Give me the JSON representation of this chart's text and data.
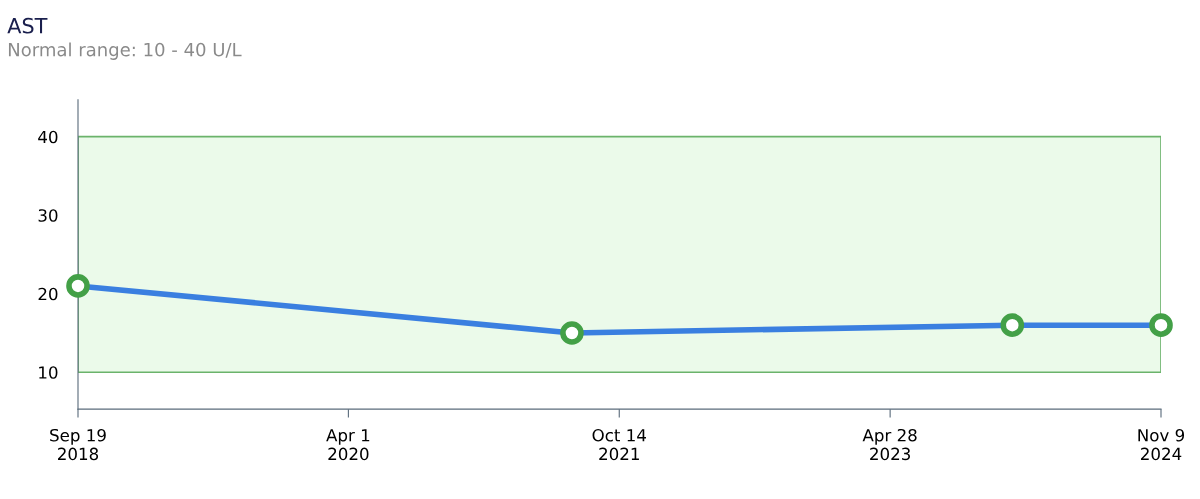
{
  "chart_data": {
    "type": "line",
    "title": "AST",
    "subtitle": "Normal range: 10 - 40 U/L",
    "x": [
      "2018-09-19",
      "2021-07-08",
      "2024-01-06",
      "2024-11-09"
    ],
    "series": [
      {
        "color": "#3a7fe0",
        "values": [
          21,
          15,
          16,
          16
        ]
      }
    ],
    "marker": "circle",
    "line_style": "solid",
    "grid": false,
    "xlim": [
      "2018-09-19",
      "2024-11-09"
    ],
    "xticks": [
      {
        "value": "2018-09-19",
        "label": "Sep 19\n2018"
      },
      {
        "value": "2020-04-01",
        "label": "Apr 1\n2020"
      },
      {
        "value": "2021-10-14",
        "label": "Oct 14\n2021"
      },
      {
        "value": "2023-04-28",
        "label": "Apr 28\n2023"
      },
      {
        "value": "2024-11-09",
        "label": "Nov 9\n2024"
      }
    ],
    "ylim": [
      5.3,
      44.7
    ],
    "yticks": [
      10,
      20,
      30,
      40
    ],
    "bands": [
      {
        "axis": "y",
        "from": 10,
        "to": 40,
        "color": "#ebfaea"
      }
    ]
  }
}
